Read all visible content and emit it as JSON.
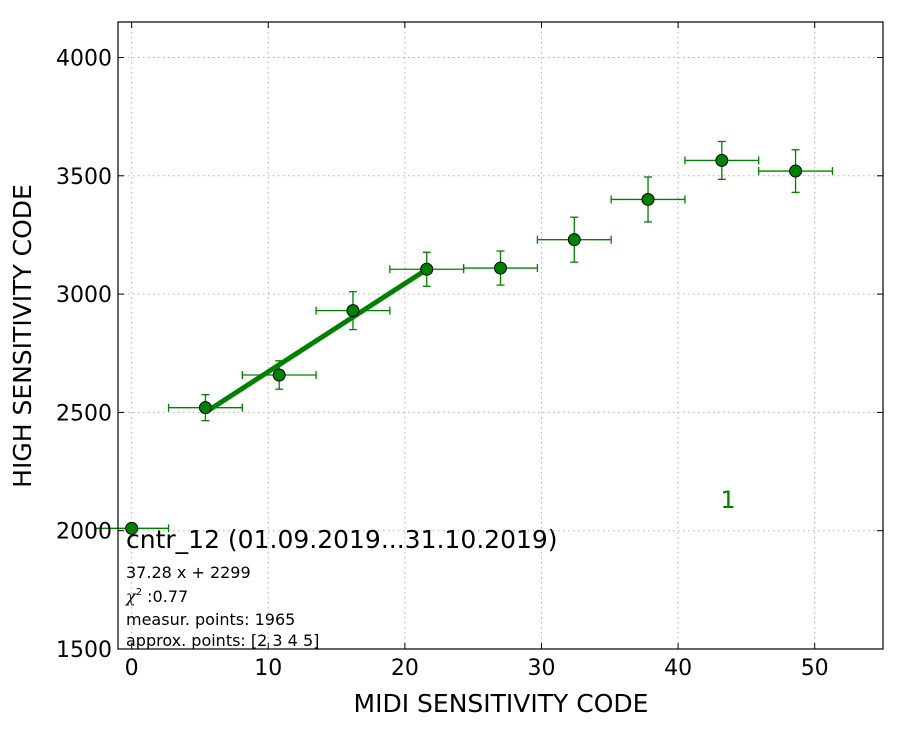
{
  "chart_data": {
    "type": "scatter",
    "xlabel": "MIDI SENSITIVITY CODE",
    "ylabel": "HIGH SENSITIVITY CODE",
    "xlim": [
      -1,
      55
    ],
    "ylim": [
      1500,
      4150
    ],
    "x_ticks": [
      0,
      10,
      20,
      30,
      40,
      50
    ],
    "y_ticks": [
      1500,
      2000,
      2500,
      3000,
      3500,
      4000
    ],
    "grid": true,
    "color": "#008000",
    "series": [
      {
        "points": [
          {
            "x": 0.0,
            "y": 2010,
            "xerr": 2.7,
            "yerr": 0
          },
          {
            "x": 5.4,
            "y": 2520,
            "xerr": 2.7,
            "yerr": 55
          },
          {
            "x": 10.8,
            "y": 2658,
            "xerr": 2.7,
            "yerr": 60
          },
          {
            "x": 16.2,
            "y": 2930,
            "xerr": 2.7,
            "yerr": 80
          },
          {
            "x": 21.6,
            "y": 3105,
            "xerr": 2.7,
            "yerr": 72
          },
          {
            "x": 27.0,
            "y": 3110,
            "xerr": 2.7,
            "yerr": 72
          },
          {
            "x": 32.4,
            "y": 3230,
            "xerr": 2.7,
            "yerr": 95
          },
          {
            "x": 37.8,
            "y": 3400,
            "xerr": 2.7,
            "yerr": 95
          },
          {
            "x": 43.2,
            "y": 3565,
            "xerr": 2.7,
            "yerr": 80
          },
          {
            "x": 48.6,
            "y": 3520,
            "xerr": 2.7,
            "yerr": 90
          }
        ]
      }
    ],
    "fit": {
      "slope": 37.28,
      "intercept": 2299,
      "x_range": [
        5.4,
        21.6
      ]
    },
    "annotations": {
      "title": "cntr_12 (01.09.2019...31.10.2019)",
      "equation": "37.28 x + 2299",
      "chi_symbol": "χ",
      "chi_sup": "2",
      "chi_value": " :0.77",
      "measured": "measur. points: 1965",
      "approx": "approx. points: [2 3 4 5]",
      "marker_label": "1"
    }
  }
}
